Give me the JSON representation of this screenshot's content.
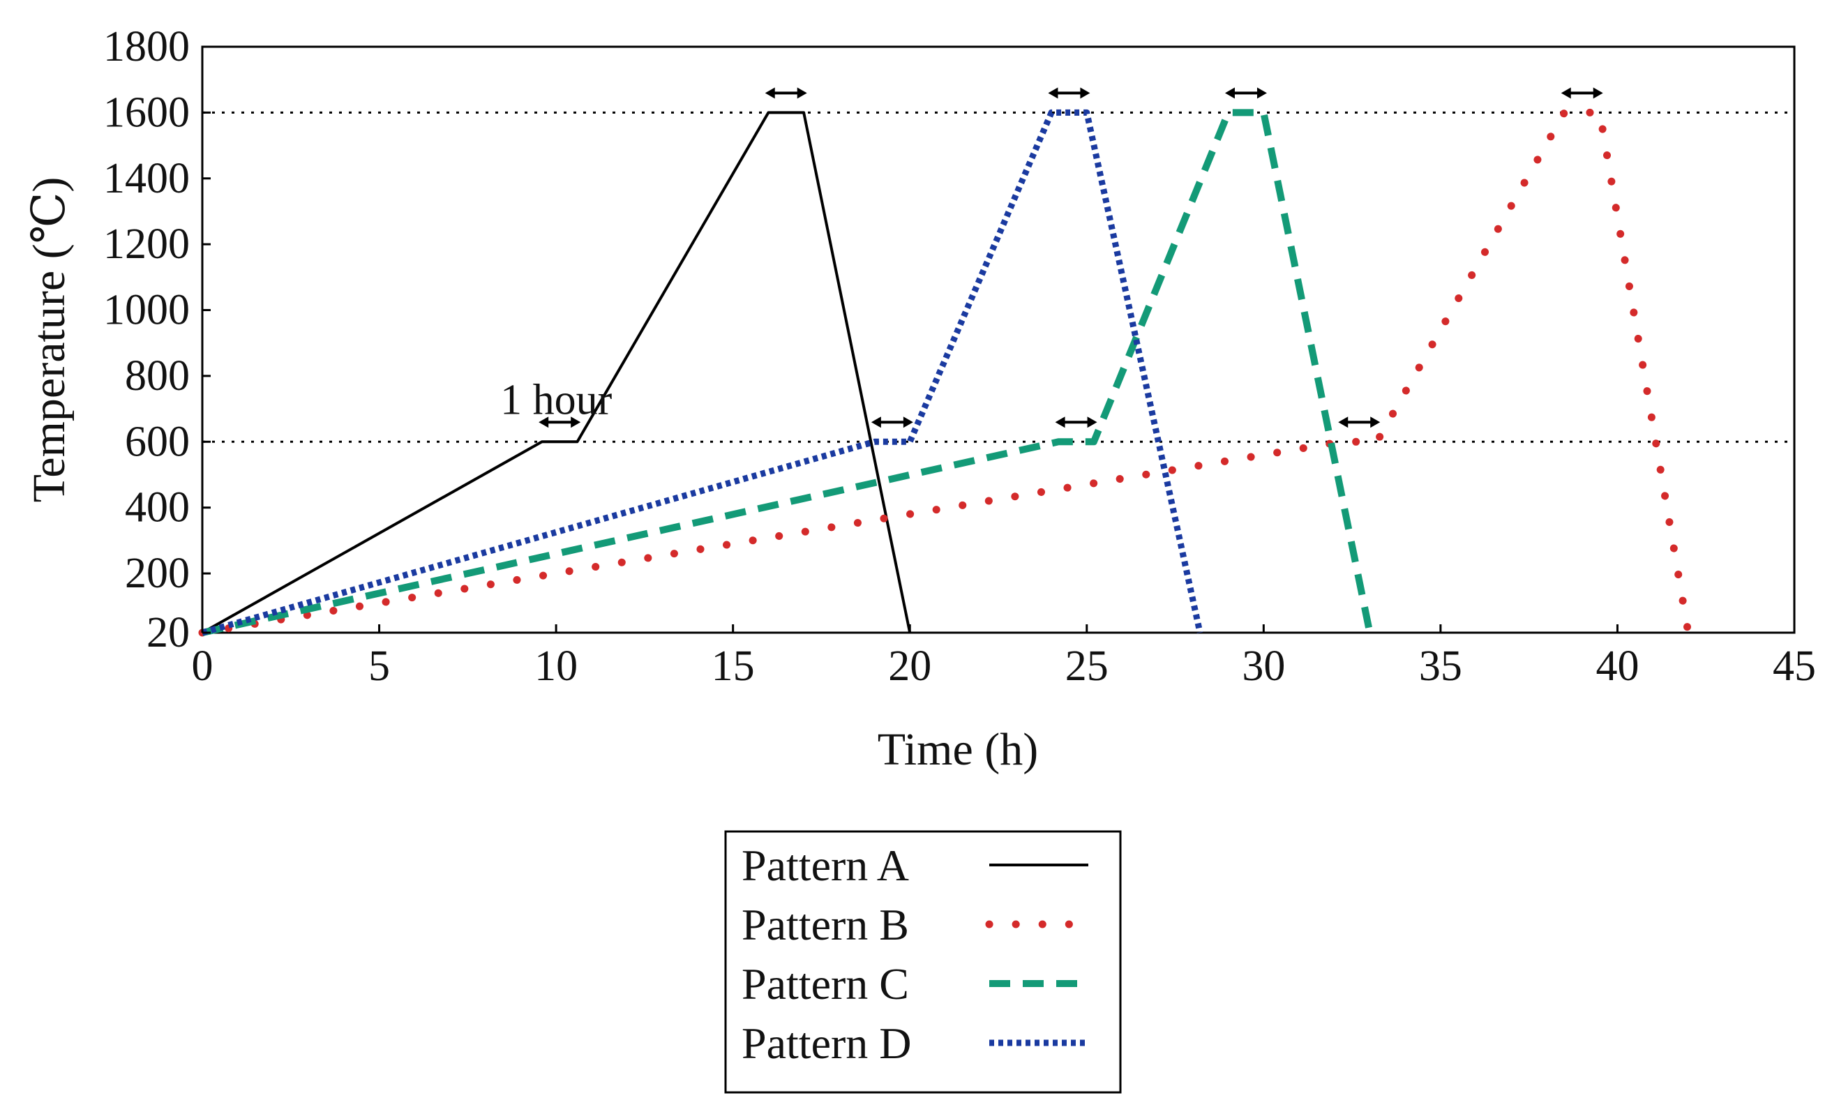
{
  "chart_data": {
    "type": "line",
    "title": "",
    "xlabel": "Time (h)",
    "ylabel": "Temperature (℃)",
    "xlim": [
      0,
      45
    ],
    "ylim": [
      20,
      1800
    ],
    "xticks": [
      0,
      5,
      10,
      15,
      20,
      25,
      30,
      35,
      40,
      45
    ],
    "yticks": [
      20,
      200,
      400,
      600,
      800,
      1000,
      1200,
      1400,
      1600,
      1800
    ],
    "grid": false,
    "reference_lines": [
      {
        "y": 600,
        "style": "dotted",
        "color": "#000000"
      },
      {
        "y": 1600,
        "style": "dotted",
        "color": "#000000"
      }
    ],
    "series": [
      {
        "name": "Pattern A",
        "style": "solid",
        "color": "#000000",
        "points": [
          [
            0,
            20
          ],
          [
            9.6,
            600
          ],
          [
            10.6,
            600
          ],
          [
            16,
            1600
          ],
          [
            17,
            1600
          ],
          [
            20,
            20
          ]
        ]
      },
      {
        "name": "Pattern B",
        "style": "dotted-sparse",
        "color": "#d42a2a",
        "points": [
          [
            0,
            20
          ],
          [
            32.2,
            600
          ],
          [
            33.2,
            600
          ],
          [
            38.5,
            1600
          ],
          [
            39.5,
            1600
          ],
          [
            42,
            20
          ]
        ]
      },
      {
        "name": "Pattern C",
        "style": "dashed",
        "color": "#139a77",
        "points": [
          [
            0,
            20
          ],
          [
            24.2,
            600
          ],
          [
            25.2,
            600
          ],
          [
            29,
            1600
          ],
          [
            30,
            1600
          ],
          [
            33,
            20
          ]
        ]
      },
      {
        "name": "Pattern D",
        "style": "dotted-dense",
        "color": "#1a3aa0",
        "points": [
          [
            0,
            20
          ],
          [
            19,
            600
          ],
          [
            20,
            600
          ],
          [
            24,
            1600
          ],
          [
            25,
            1600
          ],
          [
            28.2,
            20
          ]
        ]
      }
    ],
    "annotations": [
      {
        "text": "1 hour",
        "x": 10.1,
        "y": 600
      },
      {
        "text": "",
        "x": 16.5,
        "y": 1600
      },
      {
        "text": "",
        "x": 19.5,
        "y": 600
      },
      {
        "text": "",
        "x": 24.5,
        "y": 1600
      },
      {
        "text": "",
        "x": 24.7,
        "y": 600
      },
      {
        "text": "",
        "x": 29.5,
        "y": 1600
      },
      {
        "text": "",
        "x": 32.7,
        "y": 600
      },
      {
        "text": "",
        "x": 39,
        "y": 1600
      }
    ],
    "legend": {
      "placement": "bottom-center",
      "entries": [
        "Pattern A",
        "Pattern B",
        "Pattern C",
        "Pattern D"
      ]
    }
  }
}
